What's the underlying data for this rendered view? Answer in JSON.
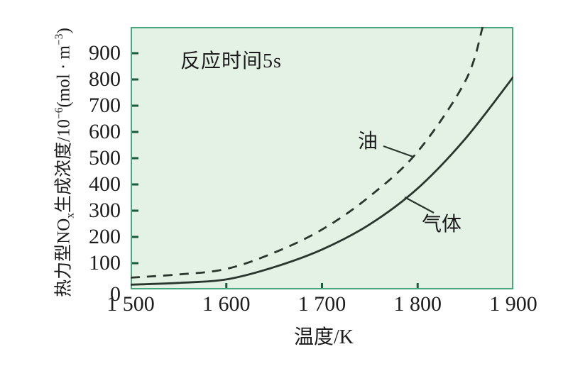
{
  "chart_data": {
    "type": "line",
    "title": "",
    "annotation": "反应时间5s",
    "xlabel": "温度/K",
    "ylabel": "热力型NOx生成浓度/10−6(mol · m−3)",
    "ylabel_rich": [
      {
        "t": "热力型NO",
        "style": "normal"
      },
      {
        "t": "x",
        "style": "sub"
      },
      {
        "t": "生成浓度/10",
        "style": "normal"
      },
      {
        "t": "−6",
        "style": "sup"
      },
      {
        "t": "(mol · m",
        "style": "normal"
      },
      {
        "t": "−3",
        "style": "sup"
      },
      {
        "t": ")",
        "style": "normal"
      }
    ],
    "xlim": [
      1500,
      1900
    ],
    "ylim": [
      0,
      1000
    ],
    "x_ticks": [
      1500,
      1600,
      1700,
      1800,
      1900
    ],
    "x_tick_labels": [
      "1 500",
      "1 600",
      "1 700",
      "1 800",
      "1 900"
    ],
    "y_ticks": [
      0,
      100,
      200,
      300,
      400,
      500,
      600,
      700,
      800,
      900
    ],
    "grid": false,
    "legend_position": "inline labels with leader lines",
    "series": [
      {
        "name": "油",
        "style": "dashed",
        "x": [
          1500,
          1550,
          1600,
          1650,
          1700,
          1750,
          1800,
          1850,
          1868
        ],
        "y": [
          45,
          57,
          78,
          140,
          228,
          355,
          525,
          795,
          1000
        ]
      },
      {
        "name": "气体",
        "style": "solid",
        "x": [
          1500,
          1550,
          1600,
          1650,
          1700,
          1750,
          1800,
          1850,
          1900
        ],
        "y": [
          18,
          25,
          38,
          85,
          152,
          248,
          385,
          575,
          810
        ]
      }
    ]
  },
  "colors": {
    "plot_bg": "#e4f2e5",
    "plot_border": "#4aa57e",
    "curve": "#2a352d",
    "tick": "#1d5a41",
    "text": "#1c1c1c"
  }
}
